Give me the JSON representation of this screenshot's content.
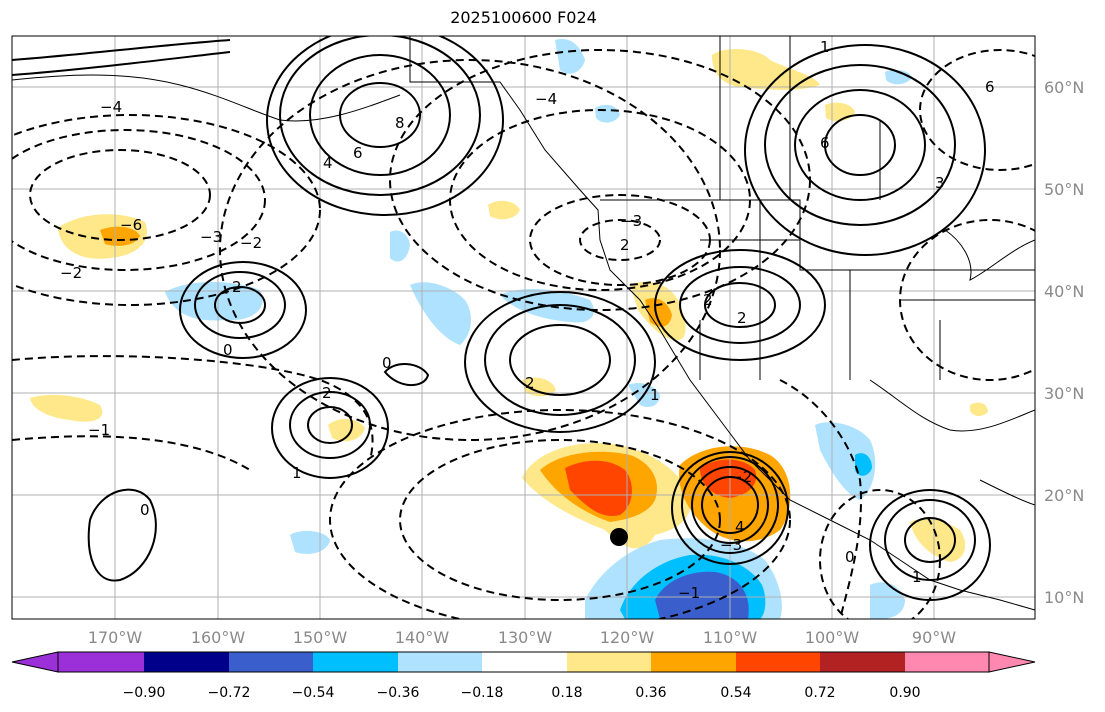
{
  "title": "2025100600 F024",
  "lon_ticks": [
    "170°W",
    "160°W",
    "150°W",
    "140°W",
    "130°W",
    "120°W",
    "110°W",
    "100°W",
    "90°W"
  ],
  "lat_ticks": [
    "60°N",
    "50°N",
    "40°N",
    "30°N",
    "20°N",
    "10°N"
  ],
  "colorbar": {
    "colors": [
      "#9b30d9",
      "#00008b",
      "#3a5fcd",
      "#00bfff",
      "#aee2ff",
      "#ffffff",
      "#ffe88a",
      "#ffa500",
      "#ff4500",
      "#b22222",
      "#ff88b0"
    ],
    "tick_labels": [
      "−0.90",
      "−0.72",
      "−0.54",
      "−0.36",
      "−0.18",
      "0.18",
      "0.36",
      "0.54",
      "0.72",
      "0.90"
    ]
  },
  "contour_labels": [
    "8",
    "6",
    "4",
    "2",
    "1",
    "0",
    "−1",
    "−2",
    "−3",
    "−4",
    "−6",
    "2",
    "2",
    "1",
    "2",
    "3",
    "6",
    "2",
    "0",
    "2",
    "1",
    "0",
    "0",
    "−1",
    "−2",
    "−2",
    "−3",
    "−4",
    "−3",
    "6",
    "4",
    "1"
  ],
  "marker": "black-dot"
}
